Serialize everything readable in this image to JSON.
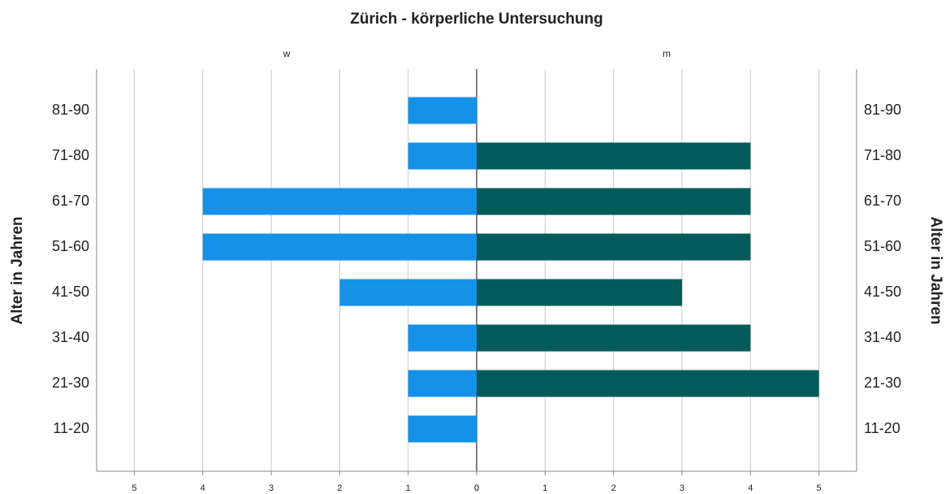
{
  "chart_data": {
    "type": "pyramid",
    "title": "Zürich - körperliche Untersuchung",
    "ylabel": "Alter in Jahren",
    "categories": [
      "11-20",
      "21-30",
      "31-40",
      "41-50",
      "51-60",
      "61-70",
      "71-80",
      "81-90"
    ],
    "series": [
      {
        "name": "w",
        "color": "#1591e8",
        "values": [
          1,
          1,
          1,
          2,
          4,
          4,
          1,
          1
        ]
      },
      {
        "name": "m",
        "color": "#005b5a",
        "values": [
          0,
          5,
          4,
          3,
          4,
          4,
          4,
          0
        ]
      }
    ],
    "xlim": [
      0,
      5.55
    ],
    "xticks": [
      0,
      1,
      2,
      3,
      4,
      5
    ],
    "grid": true
  }
}
